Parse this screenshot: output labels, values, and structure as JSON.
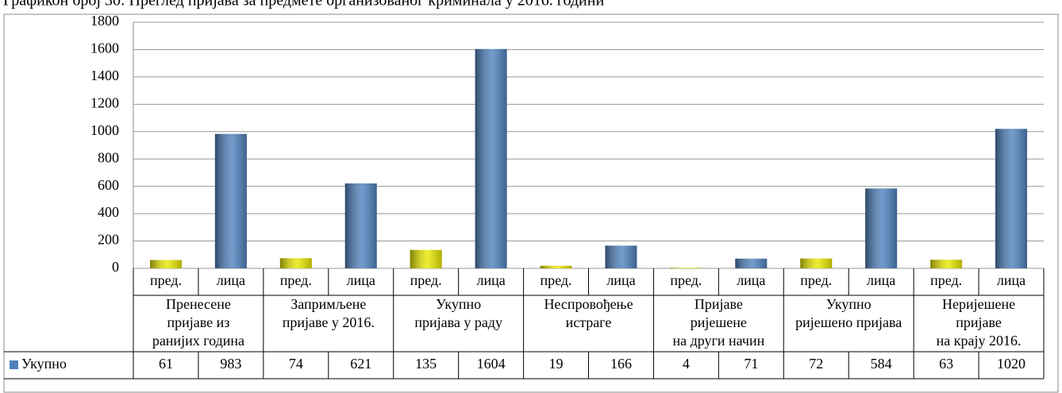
{
  "chart_data": {
    "type": "bar",
    "title": "Графикон број 30: Преглед пријава за предмете организованог криминала у 2016. години",
    "categories": [
      "пред.",
      "лица",
      "пред.",
      "лица",
      "пред.",
      "лица",
      "пред.",
      "лица",
      "пред.",
      "лица",
      "пред.",
      "лица",
      "пред.",
      "лица"
    ],
    "groups": [
      [
        "Пренесене",
        "пријаве из",
        "ранијих година"
      ],
      [
        "Запримљене",
        "пријаве у 2016."
      ],
      [
        "Укупно",
        "пријава у раду"
      ],
      [
        "Неспровођење",
        "истраге"
      ],
      [
        "Пријаве",
        "ријешене",
        "на други начин"
      ],
      [
        "Укупно",
        "ријешено пријава"
      ],
      [
        "Неријешене",
        "пријаве",
        "на крају 2016."
      ]
    ],
    "series": [
      {
        "name": "Укупно",
        "color": "#4f81bd",
        "colors": [
          "#e8e800",
          "#4f81bd",
          "#e8e800",
          "#4f81bd",
          "#e8e800",
          "#4f81bd",
          "#e8e800",
          "#4f81bd",
          "#e8e800",
          "#4f81bd",
          "#e8e800",
          "#4f81bd",
          "#e8e800",
          "#4f81bd"
        ],
        "values": [
          61,
          983,
          74,
          621,
          135,
          1604,
          19,
          166,
          4,
          71,
          72,
          584,
          63,
          1020
        ]
      }
    ],
    "ylim": [
      0,
      1800
    ],
    "yticks": [
      0,
      200,
      400,
      600,
      800,
      1000,
      1200,
      1400,
      1600,
      1800
    ],
    "grid": true
  }
}
